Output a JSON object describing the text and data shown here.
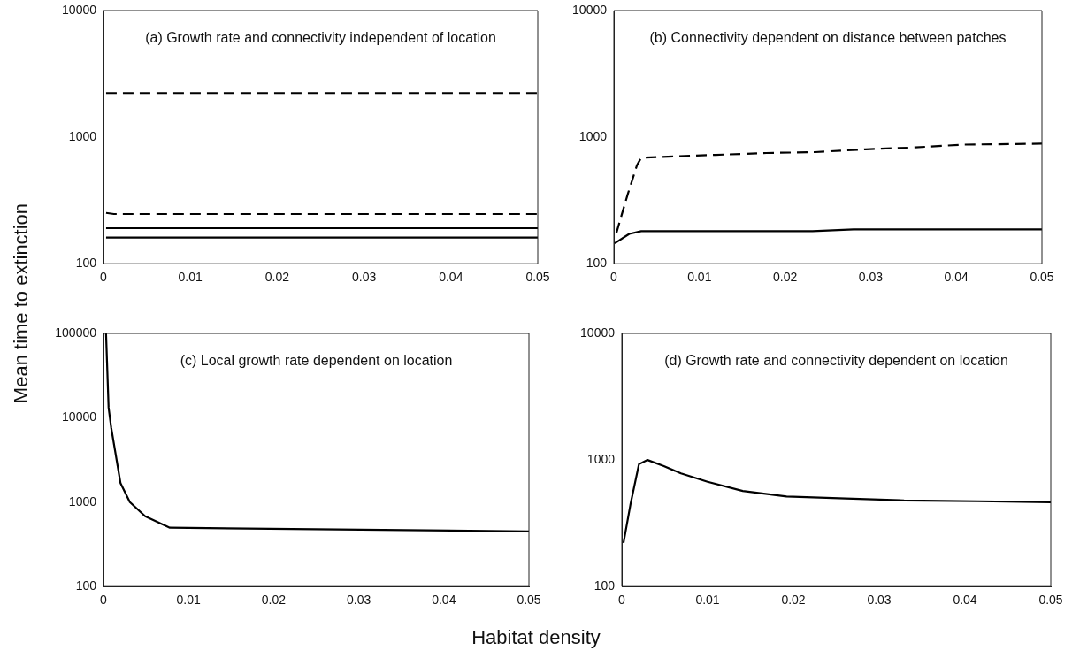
{
  "chart_data": [
    {
      "type": "line",
      "title": "(a) Growth rate and connectivity independent of location",
      "xlabel": "Habitat density",
      "ylabel": "Mean time to extinction",
      "log": "y",
      "grid": false,
      "legend": false,
      "marker": "none",
      "xlim": [
        0,
        0.05
      ],
      "xticks": [
        0,
        0.01,
        0.02,
        0.03,
        0.04,
        0.05
      ],
      "ylim": [
        100,
        10000
      ],
      "yticks": [
        100,
        1000,
        10000
      ],
      "series": [
        {
          "color": "#000000",
          "line_style": "dashed",
          "x": [
            0.0003,
            0.05
          ],
          "values": [
            2230,
            2230
          ]
        },
        {
          "color": "#000000",
          "line_style": "dashed",
          "x": [
            0.0003,
            0.0012,
            0.05
          ],
          "values": [
            252,
            247,
            247
          ]
        },
        {
          "color": "#000000",
          "line_style": "solid",
          "x": [
            0.0003,
            0.05
          ],
          "values": [
            191,
            191
          ]
        },
        {
          "color": "#000000",
          "line_style": "solid",
          "x": [
            0.0003,
            0.05
          ],
          "values": [
            161,
            161
          ]
        }
      ]
    },
    {
      "type": "line",
      "title": "(b) Connectivity dependent on distance between patches",
      "log": "y",
      "grid": false,
      "legend": false,
      "marker": "none",
      "xlim": [
        0,
        0.05
      ],
      "xticks": [
        0,
        0.01,
        0.02,
        0.03,
        0.04,
        0.05
      ],
      "ylim": [
        100,
        10000
      ],
      "yticks": [
        100,
        1000,
        10000
      ],
      "series": [
        {
          "color": "#000000",
          "line_style": "dashed",
          "x": [
            0.0003,
            0.0016,
            0.0027,
            0.0032,
            0.0119,
            0.0178,
            0.0235,
            0.0294,
            0.0352,
            0.0407,
            0.05
          ],
          "values": [
            175,
            350,
            600,
            689,
            725,
            750,
            762,
            802,
            830,
            873,
            889
          ]
        },
        {
          "color": "#000000",
          "line_style": "solid",
          "x": [
            0.0001,
            0.0018,
            0.0032,
            0.0232,
            0.028,
            0.05
          ],
          "values": [
            145,
            172,
            181,
            181,
            187,
            187
          ]
        }
      ]
    },
    {
      "type": "line",
      "title": "(c) Local growth rate dependent on location",
      "log": "y",
      "grid": false,
      "legend": false,
      "marker": "none",
      "xlim": [
        0,
        0.05
      ],
      "xticks": [
        0,
        0.01,
        0.02,
        0.03,
        0.04,
        0.05
      ],
      "ylim": [
        100,
        100000
      ],
      "yticks": [
        100,
        1000,
        10000,
        100000
      ],
      "series": [
        {
          "color": "#000000",
          "line_style": "solid",
          "x": [
            0.0003,
            0.0006,
            0.0009,
            0.002,
            0.0031,
            0.0049,
            0.0078,
            0.05
          ],
          "values": [
            100000,
            13200,
            7700,
            1680,
            1000,
            680,
            498,
            450
          ]
        }
      ]
    },
    {
      "type": "line",
      "title": "(d) Growth rate and connectivity dependent on location",
      "log": "y",
      "grid": false,
      "legend": false,
      "marker": "none",
      "xlim": [
        0,
        0.05
      ],
      "xticks": [
        0,
        0.01,
        0.02,
        0.03,
        0.04,
        0.05
      ],
      "ylim": [
        100,
        10000
      ],
      "yticks": [
        100,
        1000,
        10000
      ],
      "series": [
        {
          "color": "#000000",
          "line_style": "solid",
          "x": [
            0.0002,
            0.001,
            0.002,
            0.003,
            0.0049,
            0.0069,
            0.01,
            0.0141,
            0.0192,
            0.0261,
            0.0329,
            0.0415,
            0.05
          ],
          "values": [
            221,
            442,
            926,
            1000,
            896,
            783,
            673,
            569,
            514,
            497,
            479,
            472,
            464
          ]
        }
      ]
    }
  ]
}
